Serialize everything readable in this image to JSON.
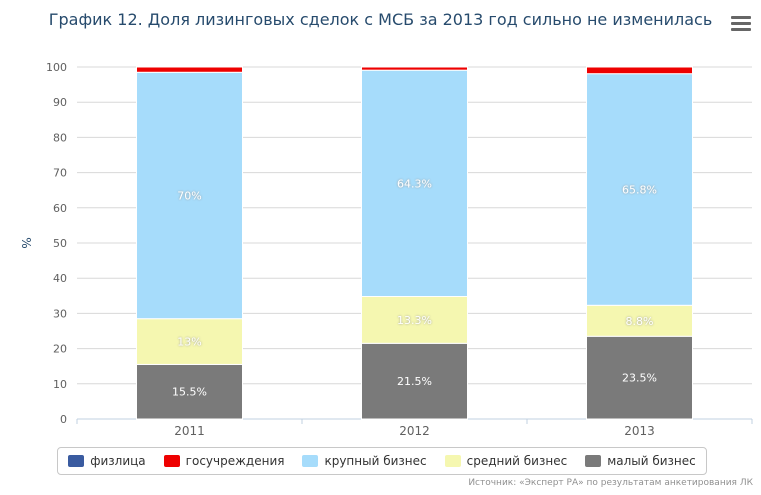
{
  "chart_data": {
    "type": "bar",
    "stacked": true,
    "title": "График 12. Доля лизинговых сделок с МСБ за 2013 год сильно не изменилась",
    "ylabel": "%",
    "ylim": [
      0,
      100
    ],
    "yticks": [
      0,
      10,
      20,
      30,
      40,
      50,
      60,
      70,
      80,
      90,
      100
    ],
    "categories": [
      "2011",
      "2012",
      "2013"
    ],
    "series": [
      {
        "name": "малый бизнес",
        "color": "#7a7a7a",
        "values": [
          15.5,
          21.5,
          23.5
        ],
        "labels": [
          "15.5%",
          "21.5%",
          "23.5%"
        ]
      },
      {
        "name": "средний бизнес",
        "color": "#f5f7b0",
        "values": [
          13,
          13.3,
          8.8
        ],
        "labels": [
          "13%",
          "13.3%",
          "8.8%"
        ]
      },
      {
        "name": "крупный бизнес",
        "color": "#a6dcfb",
        "values": [
          70,
          64.3,
          65.8
        ],
        "labels": [
          "70%",
          "64.3%",
          "65.8%"
        ]
      },
      {
        "name": "госучреждения",
        "color": "#ee0000",
        "values": [
          1.5,
          0.9,
          1.9
        ],
        "labels": [
          "",
          "",
          ""
        ]
      },
      {
        "name": "физлица",
        "color": "#3a5ba0",
        "values": [
          0,
          0,
          0
        ],
        "labels": [
          "",
          "",
          ""
        ]
      }
    ],
    "legend_order": [
      "физлица",
      "госучреждения",
      "крупный бизнес",
      "средний бизнес",
      "малый бизнес"
    ],
    "grid": true,
    "legend_position": "bottom"
  },
  "credit": "Источник: «Эксперт РА» по результатам анкетирования ЛК"
}
